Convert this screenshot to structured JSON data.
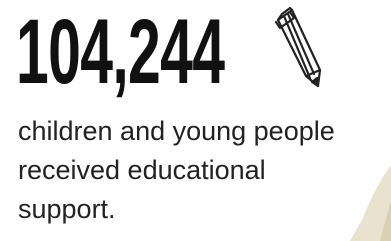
{
  "stat": {
    "value": "104,244",
    "description": "children and young people received educational support."
  }
}
